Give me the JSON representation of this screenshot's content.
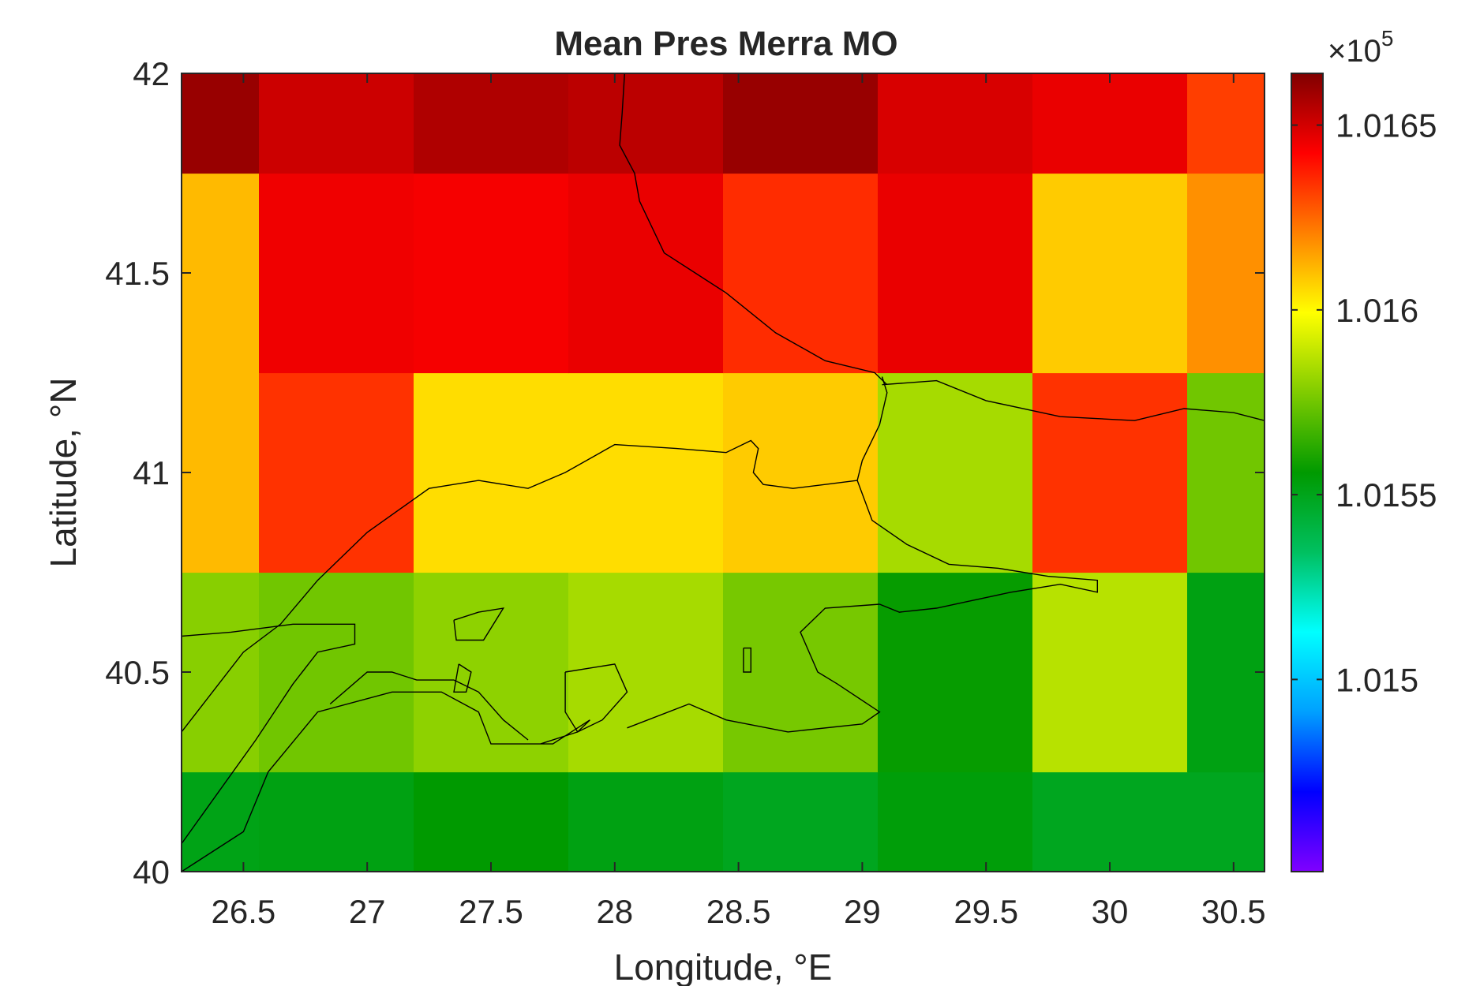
{
  "chart_data": {
    "type": "heatmap",
    "title": "Mean Pres Merra MO",
    "xlabel": "Longitude, °E",
    "ylabel": "Latitude, °N",
    "xlim": [
      26.25,
      30.625
    ],
    "ylim": [
      40,
      42
    ],
    "x_ticks": [
      26.5,
      27,
      27.5,
      28,
      28.5,
      29,
      29.5,
      30,
      30.5
    ],
    "x_tick_labels": [
      "26.5",
      "27",
      "27.5",
      "28",
      "28.5",
      "29",
      "29.5",
      "30",
      "30.5"
    ],
    "y_ticks": [
      40,
      40.5,
      41,
      41.5,
      42
    ],
    "y_tick_labels": [
      "40",
      "40.5",
      "41",
      "41.5",
      "42"
    ],
    "x_edges": [
      26.25,
      26.5625,
      27.1875,
      27.8125,
      28.4375,
      29.0625,
      29.6875,
      30.3125,
      30.625
    ],
    "y_edges": [
      40,
      40.25,
      40.75,
      41.25,
      41.75,
      42
    ],
    "rows": [
      [
        101551,
        101552,
        101556,
        101552,
        101549,
        101554,
        101549,
        101549
      ],
      [
        101579,
        101575,
        101580,
        101584,
        101576,
        101557,
        101587,
        101552
      ],
      [
        101611,
        101634,
        101605,
        101605,
        101608,
        101584,
        101634,
        101575
      ],
      [
        101611,
        101645,
        101644,
        101646,
        101635,
        101646,
        101608,
        101618
      ],
      [
        101660,
        101651,
        101656,
        101654,
        101660,
        101649,
        101646,
        101632
      ]
    ],
    "colorbar": {
      "min": 101448,
      "max": 101664,
      "ticks": [
        101500,
        101550,
        101600,
        101650
      ],
      "tick_labels": [
        "1.015",
        "1.0155",
        "1.016",
        "1.0165"
      ],
      "multiplier_base": "×10",
      "multiplier_exponent": "5",
      "colormap_stops": [
        "#8000ff",
        "#0000ff",
        "#00a0ff",
        "#00ffff",
        "#00c060",
        "#009a00",
        "#80cc00",
        "#ffff00",
        "#ff8000",
        "#ff0000",
        "#800000"
      ]
    },
    "grid": false,
    "coastline_color": "#000000"
  }
}
